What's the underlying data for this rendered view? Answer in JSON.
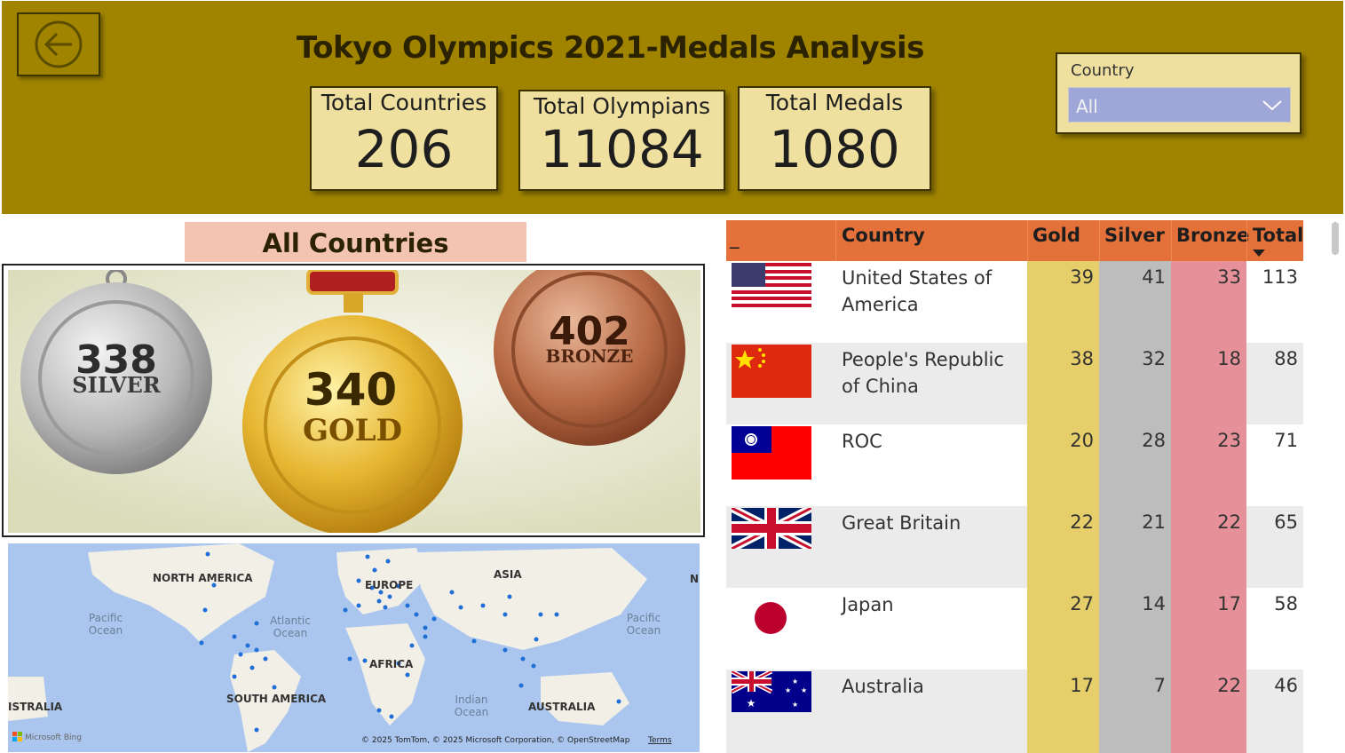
{
  "header": {
    "title": "Tokyo Olympics 2021-Medals Analysis",
    "back_icon": "back-arrow-icon"
  },
  "kpis": [
    {
      "label": "Total Countries",
      "value": "206"
    },
    {
      "label": "Total Olympians",
      "value": "11084"
    },
    {
      "label": "Total Medals",
      "value": "1080"
    }
  ],
  "slicer": {
    "label": "Country",
    "value": "All"
  },
  "subtitle": "All Countries",
  "medals": {
    "silver": {
      "count": "338",
      "label": "SILVER"
    },
    "gold": {
      "count": "340",
      "label": "GOLD"
    },
    "bronze": {
      "count": "402",
      "label": "BRONZE"
    }
  },
  "map": {
    "labels": [
      "NORTH AMERICA",
      "EUROPE",
      "ASIA",
      "Pacific",
      "Ocean",
      "Atlantic",
      "Ocean",
      "Pacific",
      "Ocean",
      "AFRICA",
      "SOUTH AMERICA",
      "Indian",
      "Ocean",
      "AUSTRALIA",
      "ISTRALIA",
      "N"
    ],
    "attribution": "© 2025 TomTom, © 2025 Microsoft Corporation, © OpenStreetMap",
    "terms": "Terms",
    "bing": "Microsoft Bing"
  },
  "table": {
    "headers": {
      "flag": "_",
      "country": "Country",
      "gold": "Gold",
      "silver": "Silver",
      "bronze": "Bronze",
      "total": "Total"
    },
    "rows": [
      {
        "country": "United States of America",
        "gold": "39",
        "silver": "41",
        "bronze": "33",
        "total": "113",
        "flag": "usa-flag"
      },
      {
        "country": "People's Republic of China",
        "gold": "38",
        "silver": "32",
        "bronze": "18",
        "total": "88",
        "flag": "china-flag"
      },
      {
        "country": "ROC",
        "gold": "20",
        "silver": "28",
        "bronze": "23",
        "total": "71",
        "flag": "roc-flag"
      },
      {
        "country": "Great Britain",
        "gold": "22",
        "silver": "21",
        "bronze": "22",
        "total": "65",
        "flag": "uk-flag"
      },
      {
        "country": "Japan",
        "gold": "27",
        "silver": "14",
        "bronze": "17",
        "total": "58",
        "flag": "japan-flag"
      },
      {
        "country": "Australia",
        "gold": "17",
        "silver": "7",
        "bronze": "22",
        "total": "46",
        "flag": "australia-flag"
      }
    ]
  },
  "colors": {
    "header_bg": "#a08400",
    "card_bg": "#efe0a0",
    "table_header": "#e4703a",
    "gold_col": "#e6cf6a",
    "silver_col": "#bdbdbd",
    "bronze_col": "#e6909a"
  }
}
